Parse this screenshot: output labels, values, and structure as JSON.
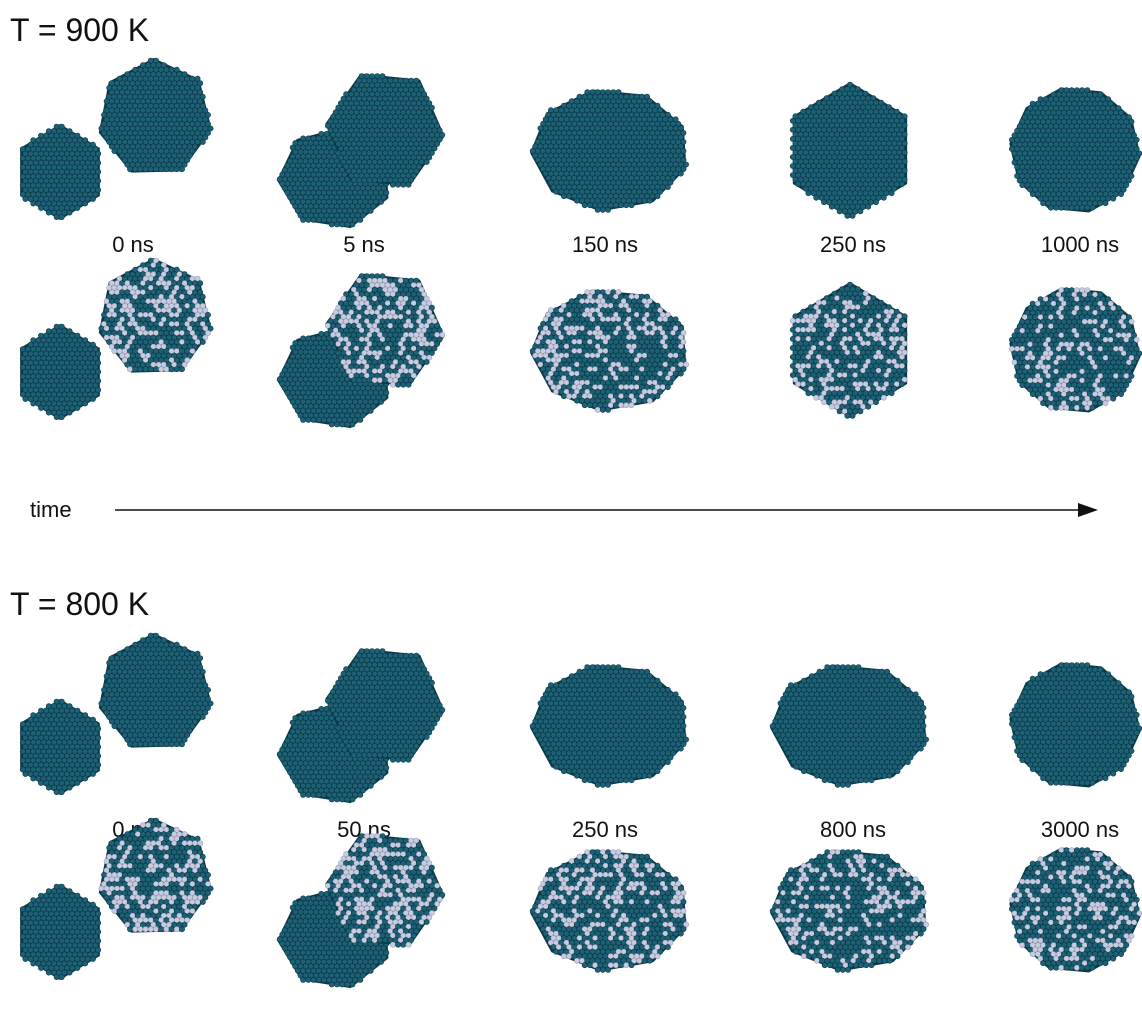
{
  "colors": {
    "atom": "#1d6176",
    "atom_dark": "#0c3a48",
    "atom_light": "#5a97a8",
    "solute": "#c8cce0"
  },
  "rows": [
    {
      "title": "T = 900 K",
      "times": [
        "0 ns",
        "5 ns",
        "150 ns",
        "250 ns",
        "1000 ns"
      ],
      "shape_kinds": [
        "pair",
        "merge",
        "blob",
        "hex",
        "round"
      ]
    },
    {
      "title": "T = 800 K",
      "times": [
        "0 ns",
        "50 ns",
        "250 ns",
        "800 ns",
        "3000 ns"
      ],
      "shape_kinds": [
        "pair",
        "merge",
        "blob",
        "blob",
        "round"
      ]
    }
  ],
  "axis": {
    "label": "time"
  }
}
